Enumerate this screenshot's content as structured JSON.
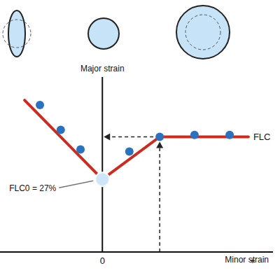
{
  "chart_data": {
    "type": "line",
    "x_label": "Minor strain",
    "y_label": "Major strain",
    "xlim": [
      -30,
      50
    ],
    "xticks": [
      0,
      {
        "value": 44,
        "label": "+"
      }
    ],
    "ylim": [
      0,
      65
    ],
    "yticks": [],
    "tick_labels": "x",
    "grid": false,
    "series": [
      {
        "name": "FLC",
        "type": "line",
        "color": "#cc2b1f",
        "x": [
          -22.8,
          0,
          16.8,
          42.8
        ],
        "values": [
          56.4,
          27,
          42.8,
          42.8
        ]
      },
      {
        "type": "scatter",
        "marker": "circle",
        "color": "#2a72bf",
        "x": [
          -18.3,
          -12.2,
          -6.4,
          7.9,
          16.8,
          27,
          37.3
        ],
        "values": [
          54.6,
          45.4,
          38.1,
          37.3,
          42.8,
          43.5,
          43.5
        ]
      }
    ],
    "annotations": [
      {
        "text": "FLC0 = 27%",
        "x": 0,
        "y": 27
      }
    ]
  }
}
